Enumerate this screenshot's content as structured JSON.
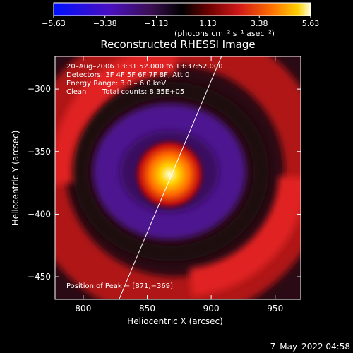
{
  "chart_data": {
    "type": "heatmap",
    "title": "Reconstructed RHESSI Image",
    "xlabel": "Heliocentric X (arcsec)",
    "ylabel": "Heliocentric Y (arcsec)",
    "xlim": [
      778,
      970
    ],
    "ylim": [
      -468,
      -274
    ],
    "x_ticks": [
      800,
      850,
      900,
      950
    ],
    "x_tick_labels": [
      "800",
      "850",
      "900",
      "950"
    ],
    "y_ticks": [
      -300,
      -350,
      -400,
      -450
    ],
    "y_tick_labels": [
      "−300",
      "−350",
      "−400",
      "−450"
    ],
    "colorbar": {
      "range": [
        -5.63,
        5.63
      ],
      "ticks": [
        -5.63,
        -3.38,
        -1.13,
        1.13,
        3.38,
        5.63
      ],
      "tick_labels": [
        "−5.63",
        "−3.38",
        "−1.13",
        "1.13",
        "3.38",
        "5.63"
      ],
      "units_label": "(photons cm⁻² s⁻¹ asec⁻²)"
    },
    "annotations": {
      "time_range": "20–Aug–2006 13:31:52.000 to 13:37:52.000",
      "detectors": "Detectors: 3F 4F 5F 6F 7F 8F, Att 0",
      "energy_range": "Energy Range: 3.0 – 6.0 keV",
      "clean_label": "Clean",
      "total_counts": "Total counts: 8.35E+05",
      "peak_position": "Position of Peak = [871,−369]"
    },
    "peak": {
      "x": 871,
      "y": -369
    },
    "limb_line": [
      [
        828,
        -470
      ],
      [
        908,
        -268
      ]
    ],
    "timestamp": "7–May–2022 04:58",
    "colormap_colors": [
      "#0010ff",
      "#5a0fb0",
      "#3a1050",
      "#000000",
      "#6a0000",
      "#d01818",
      "#ff7000",
      "#ffd000",
      "#ffffe0"
    ]
  }
}
